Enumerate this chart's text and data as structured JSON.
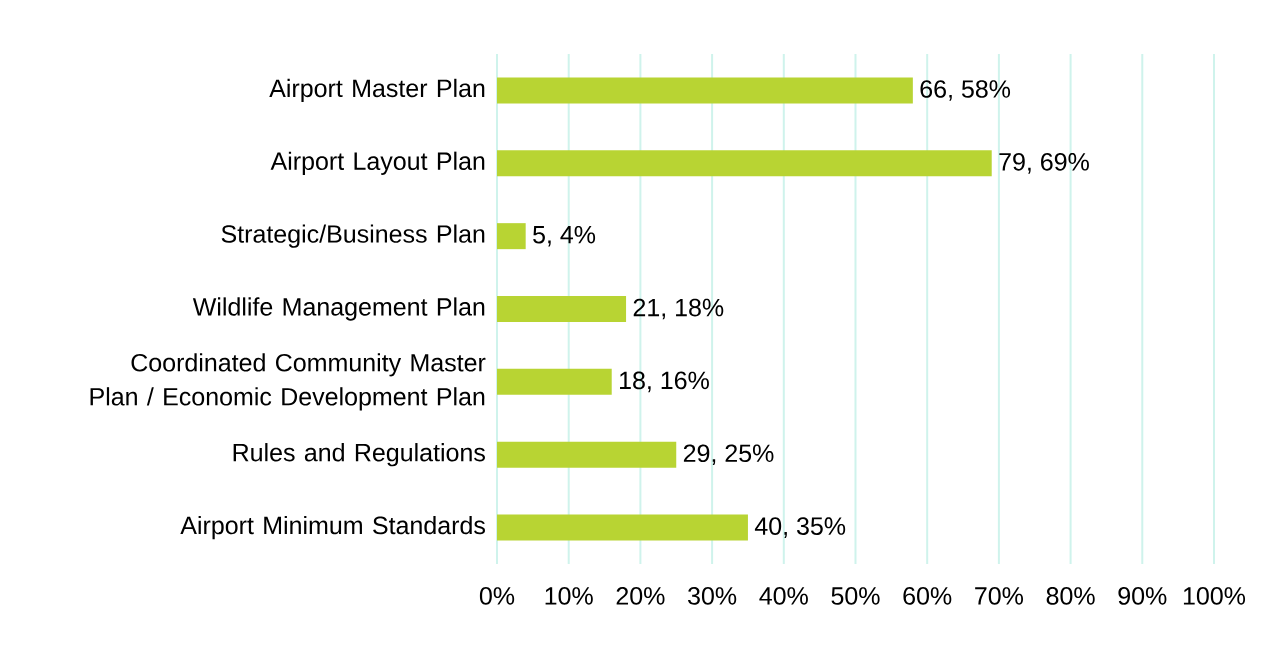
{
  "chart_data": {
    "type": "bar",
    "orientation": "horizontal",
    "categories": [
      "Airport Master Plan",
      "Airport Layout Plan",
      "Strategic/Business Plan",
      "Wildlife Management Plan",
      "Coordinated Community Master Plan / Economic Development Plan",
      "Rules and Regulations",
      "Airport Minimum Standards"
    ],
    "values": [
      58,
      69,
      4,
      18,
      16,
      25,
      35
    ],
    "value_labels": [
      "66, 58%",
      "79, 69%",
      "5, 4%",
      "21, 18%",
      "18, 16%",
      "29, 25%",
      "40, 35%"
    ],
    "color": "#b8d433",
    "xlim": [
      0,
      100
    ],
    "xticks": [
      {
        "value": 0,
        "label": "0%"
      },
      {
        "value": 10,
        "label": "10%"
      },
      {
        "value": 20,
        "label": "20%"
      },
      {
        "value": 30,
        "label": "30%"
      },
      {
        "value": 40,
        "label": "40%"
      },
      {
        "value": 50,
        "label": "50%"
      },
      {
        "value": 60,
        "label": "60%"
      },
      {
        "value": 70,
        "label": "70%"
      },
      {
        "value": 80,
        "label": "80%"
      },
      {
        "value": 90,
        "label": "90%"
      },
      {
        "value": 100,
        "label": "100%"
      }
    ],
    "grid": "x"
  }
}
